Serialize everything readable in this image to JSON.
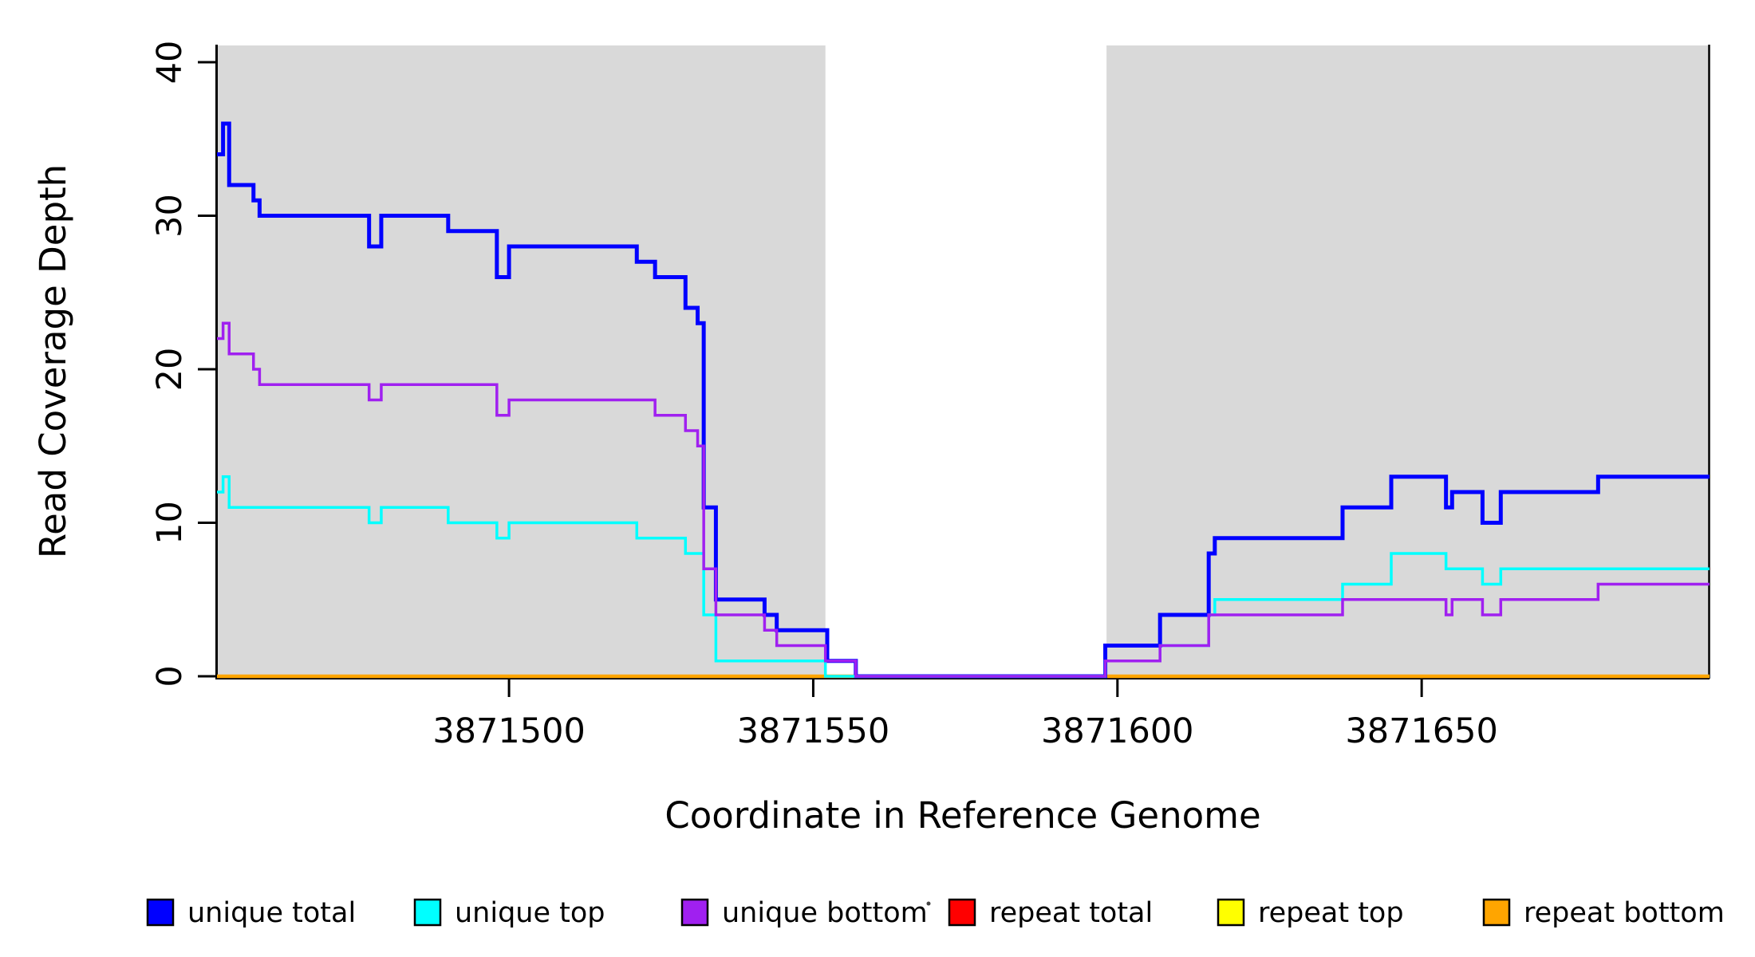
{
  "chart_data": {
    "type": "line",
    "subtype": "step-coverage-plot",
    "title": "",
    "xlabel": "Coordinate in Reference Genome",
    "ylabel": "Read Coverage Depth",
    "x_ticks": [
      3871500,
      3871550,
      3871600,
      3871650
    ],
    "y_ticks": [
      0,
      10,
      20,
      30,
      40
    ],
    "x_range": [
      3871452,
      3871697
    ],
    "y_range": [
      0,
      41
    ],
    "grid": "off",
    "legend_position": "bottom",
    "shade_color": "#d9d9d9",
    "shaded_regions": [
      {
        "start": 3871452,
        "end": 3871552,
        "label": "repeat-region-left"
      },
      {
        "start": 3871598.2,
        "end": 3871697.3,
        "label": "repeat-region-right"
      }
    ],
    "draw_order": [
      "repeat total",
      "repeat top",
      "repeat bottom",
      "unique total",
      "unique top",
      "unique bottom"
    ],
    "series": [
      {
        "name": "unique total",
        "color": "#0000ff",
        "width": 5,
        "segments": [
          [
            3871452,
            3871453,
            34
          ],
          [
            3871453,
            3871454,
            36
          ],
          [
            3871454,
            3871458,
            32
          ],
          [
            3871458,
            3871459,
            31
          ],
          [
            3871459,
            3871477,
            30
          ],
          [
            3871477,
            3871479,
            28
          ],
          [
            3871479,
            3871490,
            30
          ],
          [
            3871490,
            3871498,
            29
          ],
          [
            3871498,
            3871500,
            26
          ],
          [
            3871500,
            3871521,
            28
          ],
          [
            3871521,
            3871524,
            27
          ],
          [
            3871524,
            3871529,
            26
          ],
          [
            3871529,
            3871531,
            24
          ],
          [
            3871531,
            3871532,
            23
          ],
          [
            3871532,
            3871534,
            11
          ],
          [
            3871534,
            3871542,
            5
          ],
          [
            3871542,
            3871544,
            4
          ],
          [
            3871544,
            3871552.3,
            3
          ],
          [
            3871552.3,
            3871557,
            1
          ],
          [
            3871557,
            3871598,
            0
          ],
          [
            3871598,
            3871607,
            2
          ],
          [
            3871607,
            3871615,
            4
          ],
          [
            3871615,
            3871616,
            8
          ],
          [
            3871616,
            3871637,
            9
          ],
          [
            3871637,
            3871645,
            11
          ],
          [
            3871645,
            3871654,
            13
          ],
          [
            3871654,
            3871655,
            11
          ],
          [
            3871655,
            3871660,
            12
          ],
          [
            3871660,
            3871663,
            10
          ],
          [
            3871663,
            3871679,
            12
          ],
          [
            3871679,
            3871697.3,
            13
          ]
        ]
      },
      {
        "name": "unique top",
        "color": "#00ffff",
        "width": 3.5,
        "segments": [
          [
            3871452,
            3871453,
            12
          ],
          [
            3871453,
            3871454,
            13
          ],
          [
            3871454,
            3871477,
            11
          ],
          [
            3871477,
            3871479,
            10
          ],
          [
            3871479,
            3871490,
            11
          ],
          [
            3871490,
            3871498,
            10
          ],
          [
            3871498,
            3871500,
            9
          ],
          [
            3871500,
            3871521,
            10
          ],
          [
            3871521,
            3871529,
            9
          ],
          [
            3871529,
            3871532,
            8
          ],
          [
            3871532,
            3871534,
            4
          ],
          [
            3871534,
            3871552,
            1
          ],
          [
            3871552,
            3871598,
            0
          ],
          [
            3871598,
            3871607,
            1
          ],
          [
            3871607,
            3871615,
            2
          ],
          [
            3871615,
            3871616,
            4
          ],
          [
            3871616,
            3871637,
            5
          ],
          [
            3871637,
            3871645,
            6
          ],
          [
            3871645,
            3871654,
            8
          ],
          [
            3871654,
            3871660,
            7
          ],
          [
            3871660,
            3871663,
            6
          ],
          [
            3871663,
            3871697.3,
            7
          ]
        ]
      },
      {
        "name": "unique bottom",
        "color": "#a020f0",
        "width": 3.5,
        "segments": [
          [
            3871452,
            3871453,
            22
          ],
          [
            3871453,
            3871454,
            23
          ],
          [
            3871454,
            3871458,
            21
          ],
          [
            3871458,
            3871459,
            20
          ],
          [
            3871459,
            3871477,
            19
          ],
          [
            3871477,
            3871479,
            18
          ],
          [
            3871479,
            3871498,
            19
          ],
          [
            3871498,
            3871500,
            17
          ],
          [
            3871500,
            3871524,
            18
          ],
          [
            3871524,
            3871529,
            17
          ],
          [
            3871529,
            3871531,
            16
          ],
          [
            3871531,
            3871532,
            15
          ],
          [
            3871532,
            3871534,
            7
          ],
          [
            3871534,
            3871542,
            4
          ],
          [
            3871542,
            3871544,
            3
          ],
          [
            3871544,
            3871552,
            2
          ],
          [
            3871552,
            3871557,
            1
          ],
          [
            3871557,
            3871598,
            0
          ],
          [
            3871598,
            3871607,
            1
          ],
          [
            3871607,
            3871615,
            2
          ],
          [
            3871615,
            3871637,
            4
          ],
          [
            3871637,
            3871654,
            5
          ],
          [
            3871654,
            3871655,
            4
          ],
          [
            3871655,
            3871660,
            5
          ],
          [
            3871660,
            3871663,
            4
          ],
          [
            3871663,
            3871679,
            5
          ],
          [
            3871679,
            3871697.3,
            6
          ]
        ]
      },
      {
        "name": "repeat total",
        "color": "#ff0000",
        "width": 3,
        "segments": [
          [
            3871452,
            3871552,
            0
          ],
          [
            3871598.2,
            3871697.3,
            0
          ]
        ]
      },
      {
        "name": "repeat top",
        "color": "#ffff00",
        "width": 3,
        "segments": [
          [
            3871452,
            3871552,
            0
          ],
          [
            3871598.2,
            3871697.3,
            0
          ]
        ]
      },
      {
        "name": "repeat bottom",
        "color": "#ffa500",
        "width": 4.5,
        "segments": [
          [
            3871452,
            3871552,
            0
          ],
          [
            3871598.2,
            3871697.3,
            0
          ]
        ]
      }
    ],
    "legend": [
      {
        "label": "unique total",
        "color": "#0000ff"
      },
      {
        "label": "unique top",
        "color": "#00ffff"
      },
      {
        "label": "unique bottom",
        "color": "#a020f0"
      },
      {
        "label": "repeat total",
        "color": "#ff0000"
      },
      {
        "label": "repeat top",
        "color": "#ffff00"
      },
      {
        "label": "repeat bottom",
        "color": "#ffa500"
      }
    ]
  }
}
